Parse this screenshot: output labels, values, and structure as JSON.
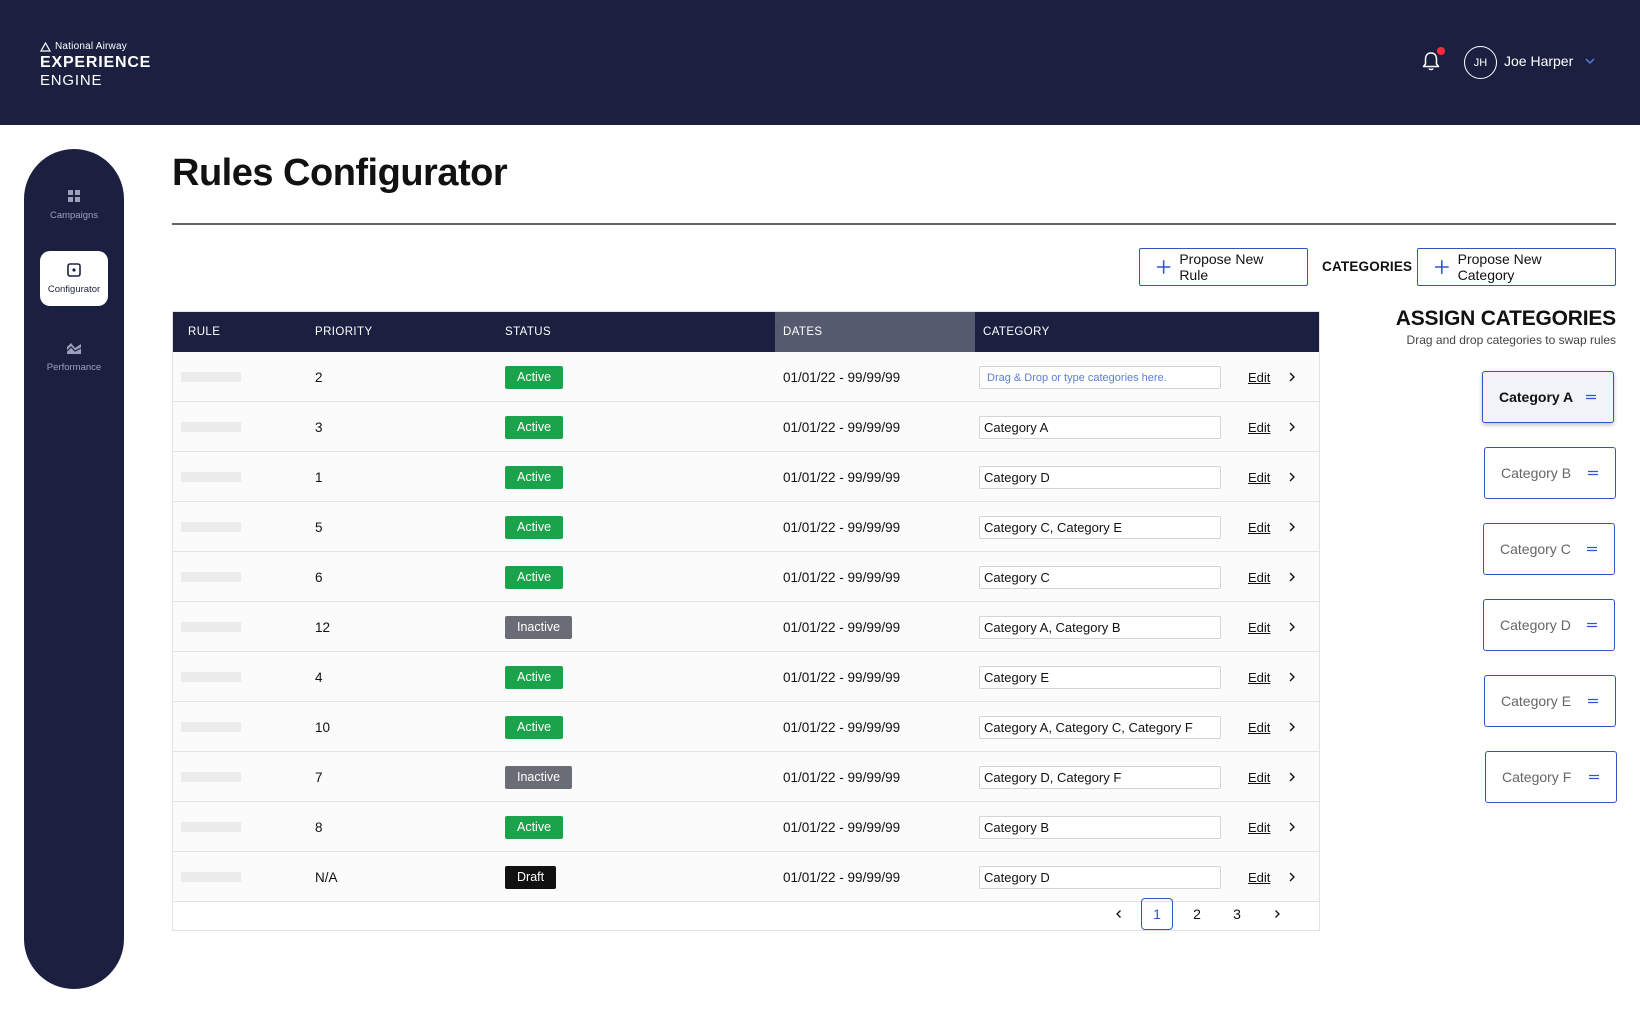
{
  "header": {
    "logo_top": "National Airway",
    "logo_main": "EXPERIENCE",
    "logo_sub": "ENGINE",
    "user_initials": "JH",
    "user_name": "Joe Harper"
  },
  "sidebar": {
    "items": [
      {
        "label": "Campaigns",
        "icon": "grid-icon"
      },
      {
        "label": "Configurator",
        "icon": "configurator-icon",
        "active": true
      },
      {
        "label": "Performance",
        "icon": "performance-icon"
      }
    ]
  },
  "page": {
    "title": "Rules Configurator"
  },
  "actions": {
    "propose_rule": "Propose New Rule",
    "categories_label": "CATEGORIES",
    "propose_category": "Propose New Category"
  },
  "table": {
    "columns": [
      "RULE",
      "PRIORITY",
      "STATUS",
      "DATES",
      "CATEGORY"
    ],
    "edit_label": "Edit",
    "rows": [
      {
        "priority": "2",
        "status": "Active",
        "dates": "01/01/22 - 99/99/99",
        "category": "Drag & Drop  or type categories here."
      },
      {
        "priority": "3",
        "status": "Active",
        "dates": "01/01/22 - 99/99/99",
        "category": "Category A"
      },
      {
        "priority": "1",
        "status": "Active",
        "dates": "01/01/22 - 99/99/99",
        "category": "Category D"
      },
      {
        "priority": "5",
        "status": "Active",
        "dates": "01/01/22 - 99/99/99",
        "category": "Category C, Category E"
      },
      {
        "priority": "6",
        "status": "Active",
        "dates": "01/01/22 - 99/99/99",
        "category": "Category C"
      },
      {
        "priority": "12",
        "status": "Inactive",
        "dates": "01/01/22 - 99/99/99",
        "category": "Category A, Category B"
      },
      {
        "priority": "4",
        "status": "Active",
        "dates": "01/01/22 - 99/99/99",
        "category": "Category E"
      },
      {
        "priority": "10",
        "status": "Active",
        "dates": "01/01/22 - 99/99/99",
        "category": "Category A, Category  C,  Category F"
      },
      {
        "priority": "7",
        "status": "Inactive",
        "dates": "01/01/22 - 99/99/99",
        "category": "Category D, Category F"
      },
      {
        "priority": "8",
        "status": "Active",
        "dates": "01/01/22 - 99/99/99",
        "category": "Category B"
      },
      {
        "priority": "N/A",
        "status": "Draft",
        "dates": "01/01/22 - 99/99/99",
        "category": "Category D"
      }
    ]
  },
  "pagination": {
    "pages": [
      "1",
      "2",
      "3"
    ],
    "current": "1"
  },
  "assign": {
    "title": "ASSIGN CATEGORIES",
    "subtitle": "Drag and drop categories to swap rules",
    "categories": [
      "Category A",
      "Category B",
      "Category C",
      "Category D",
      "Category E",
      "Category F"
    ],
    "selected": "Category A"
  },
  "colors": {
    "navy": "#1b2040",
    "accent_blue": "#2f56c9",
    "active_green": "#1aa34a",
    "inactive_gray": "#6a6d76",
    "notification_red": "#ff2b3a"
  }
}
